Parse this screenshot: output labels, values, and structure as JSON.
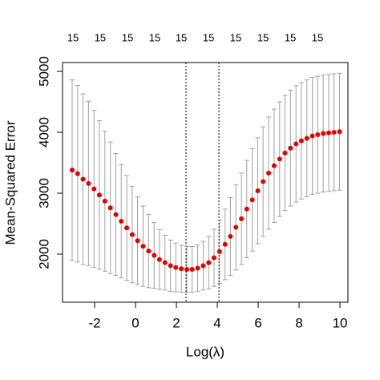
{
  "chart_data": {
    "type": "errorbar",
    "x_label": "Log(λ)",
    "y_label": "Mean-Squared Error",
    "x": [
      -3.1,
      -2.83,
      -2.57,
      -2.3,
      -2.03,
      -1.77,
      -1.5,
      -1.23,
      -0.96,
      -0.7,
      -0.43,
      -0.16,
      0.1,
      0.37,
      0.64,
      0.91,
      1.17,
      1.44,
      1.71,
      1.97,
      2.24,
      2.51,
      2.77,
      3.04,
      3.31,
      3.58,
      3.84,
      4.11,
      4.38,
      4.64,
      4.91,
      5.18,
      5.44,
      5.71,
      5.98,
      6.24,
      6.51,
      6.78,
      7.05,
      7.31,
      7.58,
      7.85,
      8.11,
      8.38,
      8.65,
      8.91,
      9.18,
      9.45,
      9.71,
      9.98
    ],
    "values": [
      3380,
      3320,
      3230,
      3160,
      3070,
      2970,
      2870,
      2760,
      2650,
      2540,
      2430,
      2320,
      2220,
      2130,
      2050,
      1980,
      1910,
      1860,
      1810,
      1780,
      1760,
      1750,
      1750,
      1770,
      1810,
      1860,
      1940,
      2040,
      2160,
      2290,
      2440,
      2580,
      2740,
      2890,
      3040,
      3190,
      3330,
      3450,
      3560,
      3660,
      3740,
      3810,
      3860,
      3900,
      3940,
      3960,
      3980,
      3990,
      4000,
      4010
    ],
    "error": [
      1480,
      1450,
      1400,
      1350,
      1290,
      1220,
      1150,
      1080,
      1000,
      930,
      860,
      790,
      720,
      660,
      600,
      540,
      490,
      450,
      420,
      400,
      385,
      375,
      375,
      380,
      400,
      430,
      470,
      520,
      580,
      640,
      700,
      750,
      800,
      840,
      870,
      900,
      920,
      930,
      940,
      945,
      950,
      955,
      955,
      960,
      960,
      960,
      960,
      960,
      960,
      960
    ],
    "color": "#e00000",
    "error_color": "#a0a0a0",
    "xlim": [
      -3.57,
      10.39
    ],
    "ylim": [
      1210,
      5145
    ],
    "xticks": [
      -2,
      0,
      2,
      4,
      6,
      8,
      10
    ],
    "yticks": [
      2000,
      3000,
      4000,
      5000
    ],
    "top_ticks": [
      {
        "value": -3.06,
        "label": "15"
      },
      {
        "value": -1.73,
        "label": "15"
      },
      {
        "value": -0.39,
        "label": "15"
      },
      {
        "value": 0.94,
        "label": "15"
      },
      {
        "value": 2.24,
        "label": "15"
      },
      {
        "value": 3.57,
        "label": "15"
      },
      {
        "value": 4.9,
        "label": "15"
      },
      {
        "value": 6.24,
        "label": "15"
      },
      {
        "value": 7.57,
        "label": "15"
      },
      {
        "value": 8.9,
        "label": "15"
      }
    ],
    "vlines": [
      2.47,
      4.08
    ]
  }
}
